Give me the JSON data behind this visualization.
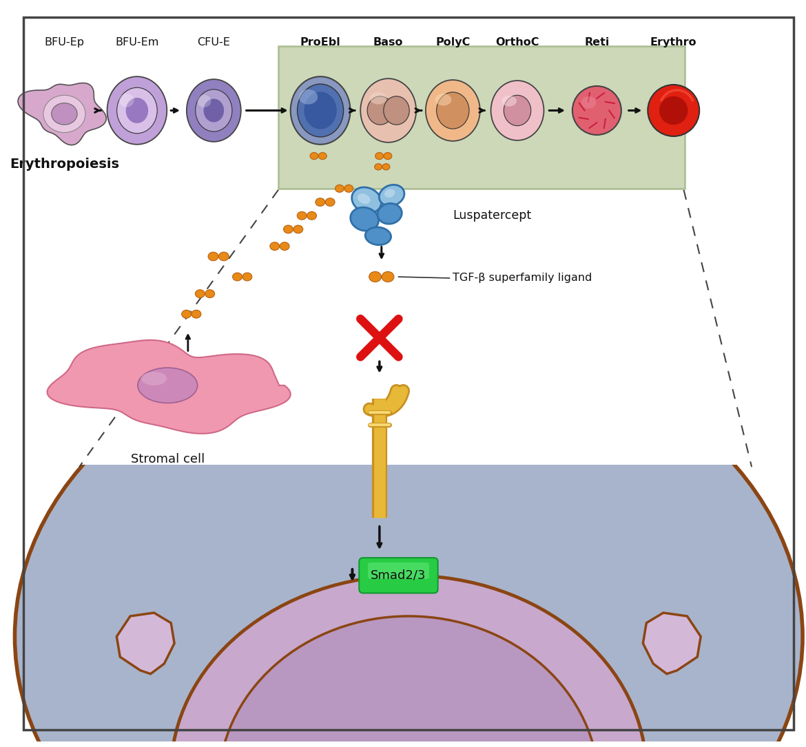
{
  "bg_color": "#ffffff",
  "border_color": "#333333",
  "cell_labels": [
    "BFU-Ep",
    "BFU-Em",
    "CFU-E",
    "ProEbl",
    "Baso",
    "PolyC",
    "OrthoC",
    "Reti",
    "Erythro"
  ],
  "erythropoiesis_label": "Erythropoiesis",
  "green_box_color": "#ccd8b8",
  "green_box_outline": "#aabb90",
  "luspatercept_label": "Luspatercept",
  "tgf_label": "TGF-β superfamily ligand",
  "stromal_label": "Stromal cell",
  "smad_label": "Smad2/3",
  "orange_color": "#e88a18",
  "orange_dark": "#b86010",
  "blue_dark": "#3878b8",
  "blue_mid": "#5898cc",
  "blue_light": "#a0c8e8",
  "gold": "#e8b838",
  "gold_dark": "#c89020",
  "gold_light": "#f8d870",
  "red_x": "#dd1111",
  "smad_green": "#28cc44",
  "smad_green_light": "#70ee88",
  "smad_green_dark": "#109830",
  "stromal_pink": "#f098b0",
  "stromal_pink_dark": "#d06888",
  "stromal_nuc": "#cc88b8",
  "stromal_nuc_light": "#e0b0d0",
  "cell_bg_blue": "#a8b4cc",
  "cell_bg_blue_light": "#c0cce0",
  "cell_membrane_brown": "#8B4513",
  "nuclear_pink": "#c8a8cc",
  "nuclear_pink2": "#d4b8d8"
}
